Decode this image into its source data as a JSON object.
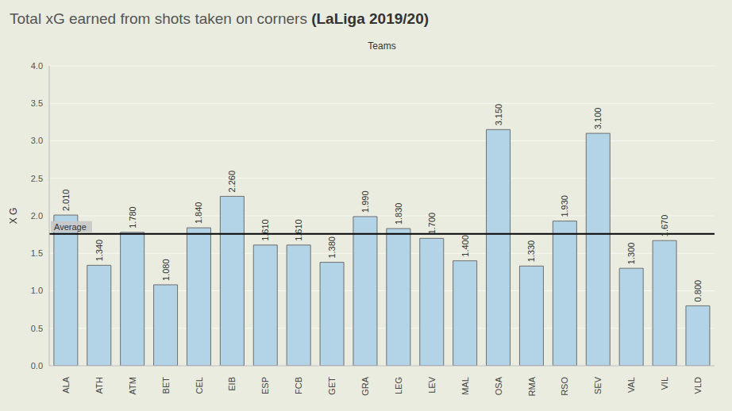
{
  "chart_data": {
    "type": "bar",
    "title": "Total xG earned from shots taken on corners (LaLiga 2019/20)",
    "x_label": "Teams",
    "y_label": "X G",
    "categories": [
      "ALA",
      "ATH",
      "ATM",
      "BET",
      "CEL",
      "EIB",
      "ESP",
      "FCB",
      "GET",
      "GRA",
      "LEG",
      "LEV",
      "MAL",
      "OSA",
      "RMA",
      "RSO",
      "SEV",
      "VAL",
      "VIL",
      "VLD"
    ],
    "values": [
      2.01,
      1.34,
      1.78,
      1.08,
      1.84,
      2.26,
      1.61,
      1.61,
      1.38,
      1.99,
      1.83,
      1.7,
      1.4,
      3.15,
      1.33,
      1.93,
      3.1,
      1.3,
      1.67,
      0.8
    ],
    "value_labels": [
      "2.010",
      "1.340",
      "1.780",
      "1.080",
      "1.840",
      "2.260",
      "1.610",
      "1.610",
      "1.380",
      "1.990",
      "1.830",
      "1.700",
      "1.400",
      "3.150",
      "1.330",
      "1.930",
      "3.100",
      "1.300",
      "1.670",
      "0.800"
    ],
    "data_labels": true,
    "color": "#b3d3e6",
    "ylim": [
      0,
      4
    ],
    "yticks": [
      {
        "value": 0,
        "label": "0.0"
      },
      {
        "value": 0.5,
        "label": "0.5"
      },
      {
        "value": 1,
        "label": "1.0"
      },
      {
        "value": 1.5,
        "label": "1.5"
      },
      {
        "value": 2,
        "label": "2.0"
      },
      {
        "value": 2.5,
        "label": "2.5"
      },
      {
        "value": 3,
        "label": "3.0"
      },
      {
        "value": 3.5,
        "label": "3.5"
      },
      {
        "value": 4,
        "label": "4.0"
      }
    ],
    "grid": true,
    "reference_line": {
      "value": 1.76,
      "label": "Average"
    }
  }
}
